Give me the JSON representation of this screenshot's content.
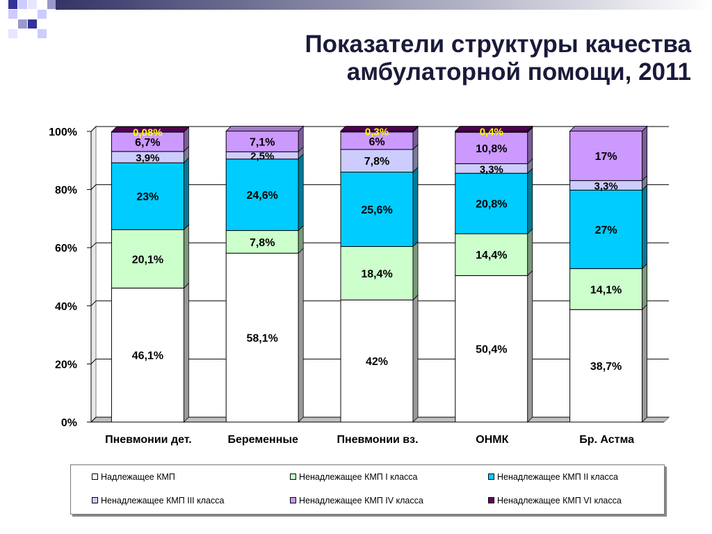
{
  "title": {
    "line1": "Показатели структуры качества",
    "line2": "амбулаторной помощи, 2011"
  },
  "chart_data": {
    "type": "bar",
    "stacked": true,
    "percent_stacked": true,
    "categories": [
      "Пневмонии дет.",
      "Беременные",
      "Пневмонии вз.",
      "ОНМК",
      "Бр. Астма"
    ],
    "ylim": [
      0,
      100
    ],
    "yticks": [
      "0%",
      "20%",
      "40%",
      "60%",
      "80%",
      "100%"
    ],
    "grid": true,
    "legend_position": "bottom",
    "series": [
      {
        "name": "Надлежащее КМП",
        "color": "#ffffff",
        "values": [
          46.1,
          58.1,
          42,
          50.4,
          38.7
        ],
        "labels": [
          "46,1%",
          "58,1%",
          "42%",
          "50,4%",
          "38,7%"
        ]
      },
      {
        "name": "Ненадлежащее КМП I класса",
        "color": "#ccffcc",
        "values": [
          20.1,
          7.8,
          18.4,
          14.4,
          14.1
        ],
        "labels": [
          "20,1%",
          "7,8%",
          "18,4%",
          "14,4%",
          "14,1%"
        ]
      },
      {
        "name": "Ненадлежащее КМП II  класса",
        "color": "#00ccff",
        "values": [
          23,
          24.6,
          25.6,
          20.8,
          27
        ],
        "labels": [
          "23%",
          "24,6%",
          "25,6%",
          "20,8%",
          "27%"
        ]
      },
      {
        "name": "Ненадлежащее КМП III класса",
        "color": "#ccccff",
        "values": [
          3.9,
          2.5,
          7.8,
          3.3,
          3.3
        ],
        "labels": [
          "3,9%",
          "2,5%",
          "7,8%",
          "3,3%",
          "3,3%"
        ]
      },
      {
        "name": "Ненадлежащее КМП IV класса",
        "color": "#cc99ff",
        "values": [
          6.7,
          7.1,
          6,
          10.8,
          17
        ],
        "labels": [
          "6,7%",
          "7,1%",
          "6%",
          "10,8%",
          "17%"
        ]
      },
      {
        "name": "Ненадлежащее КМП VI класса",
        "color": "#660066",
        "values": [
          0.08,
          0,
          0.3,
          0.4,
          0
        ],
        "labels": [
          "0,08%",
          "",
          "0,3%",
          "0,4%",
          ""
        ]
      }
    ]
  }
}
